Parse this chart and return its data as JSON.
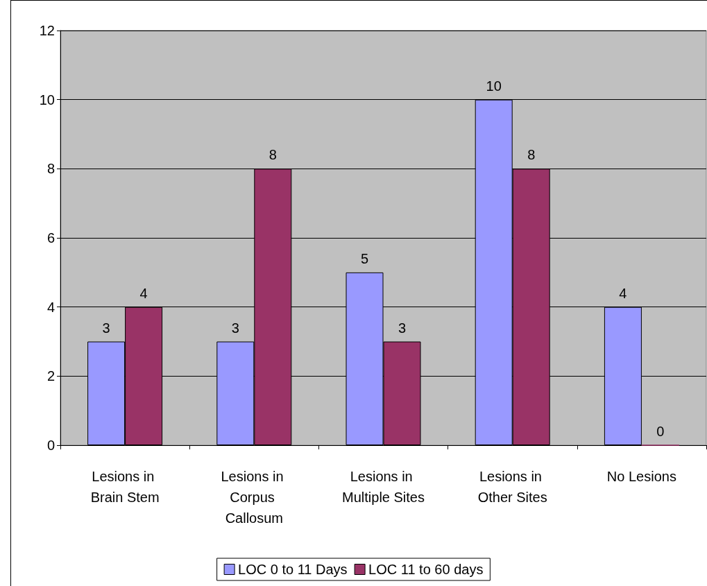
{
  "chart_data": {
    "type": "bar",
    "categories": [
      "Lesions in Brain Stem",
      "Lesions in Corpus Callosum",
      "Lesions in Multiple Sites",
      "Lesions in Other Sites",
      "No Lesions"
    ],
    "series": [
      {
        "name": "LOC 0 to 11 Days",
        "color": "#9999ff",
        "values": [
          3,
          3,
          5,
          10,
          4
        ]
      },
      {
        "name": "LOC 11 to 60 days",
        "color": "#993366",
        "values": [
          4,
          8,
          3,
          8,
          0
        ]
      }
    ],
    "ylim": [
      0,
      12
    ],
    "yticks": [
      0,
      2,
      4,
      6,
      8,
      10,
      12
    ],
    "grid": "y",
    "legend": "bottom",
    "data_labels": true
  }
}
